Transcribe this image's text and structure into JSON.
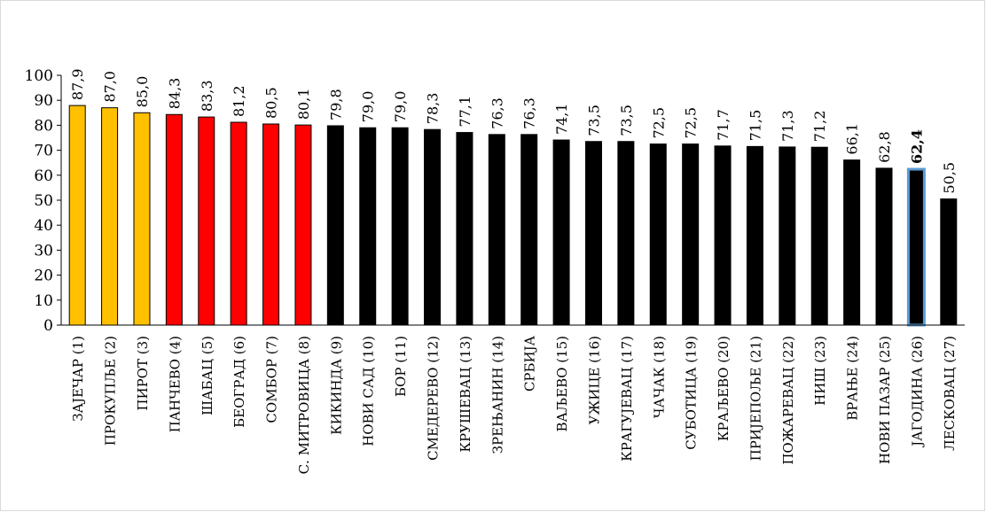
{
  "chart_data": {
    "type": "bar",
    "categories": [
      "ЗАЈЕЧАР (1)",
      "ПРОКУПЉЕ (2)",
      "ПИРОТ (3)",
      "ПАНЧЕВО (4)",
      "ШАБАЦ (5)",
      "БЕОГРАД (6)",
      "СОМБОР (7)",
      "С. МИТРОВИЦА (8)",
      "КИКИНДА (9)",
      "НОВИ САД (10)",
      "БОР (11)",
      "СМЕДЕРЕВО (12)",
      "КРУШЕВАЦ (13)",
      "ЗРЕЊАНИН (14)",
      "СРБИЈА",
      "ВАЉЕВО (15)",
      "УЖИЦЕ (16)",
      "КРАГУЈЕВАЦ (17)",
      "ЧАЧАК (18)",
      "СУБОТИЦА (19)",
      "КРАЉЕВО (20)",
      "ПРИЈЕПОЉЕ (21)",
      "ПОЖАРЕВАЦ (22)",
      "НИШ (23)",
      "ВРАЊЕ (24)",
      "НОВИ ПАЗАР (25)",
      "ЈАГОДИНА (26)",
      "ЛЕСКОВАЦ (27)"
    ],
    "values": [
      87.9,
      87.0,
      85.0,
      84.3,
      83.3,
      81.2,
      80.5,
      80.1,
      79.8,
      79.0,
      79.0,
      78.3,
      77.1,
      76.3,
      76.3,
      74.1,
      73.5,
      73.5,
      72.5,
      72.5,
      71.7,
      71.5,
      71.3,
      71.2,
      66.1,
      62.8,
      62.4,
      50.5
    ],
    "data_labels": [
      "87,9",
      "87,0",
      "85,0",
      "84,3",
      "83,3",
      "81,2",
      "80,5",
      "80,1",
      "79,8",
      "79,0",
      "79,0",
      "78,3",
      "77,1",
      "76,3",
      "76,3",
      "74,1",
      "73,5",
      "73,5",
      "72,5",
      "72,5",
      "71,7",
      "71,5",
      "71,3",
      "71,2",
      "66,1",
      "62,8",
      "62,4",
      "50,5"
    ],
    "bar_colors": [
      "#FFC000",
      "#FFC000",
      "#FFC000",
      "#FF0000",
      "#FF0000",
      "#FF0000",
      "#FF0000",
      "#FF0000",
      "#000000",
      "#000000",
      "#000000",
      "#000000",
      "#000000",
      "#000000",
      "#000000",
      "#000000",
      "#000000",
      "#000000",
      "#000000",
      "#000000",
      "#000000",
      "#000000",
      "#000000",
      "#000000",
      "#000000",
      "#000000",
      "#000000",
      "#000000"
    ],
    "highlight_index": 26,
    "highlight_outline_color": "#5B9BD5",
    "yticks": [
      "0",
      "10",
      "20",
      "30",
      "40",
      "50",
      "60",
      "70",
      "80",
      "90",
      "100"
    ],
    "ylim": [
      0,
      100
    ],
    "title": "",
    "xlabel": "",
    "ylabel": "",
    "grid": false,
    "legend": "none"
  }
}
